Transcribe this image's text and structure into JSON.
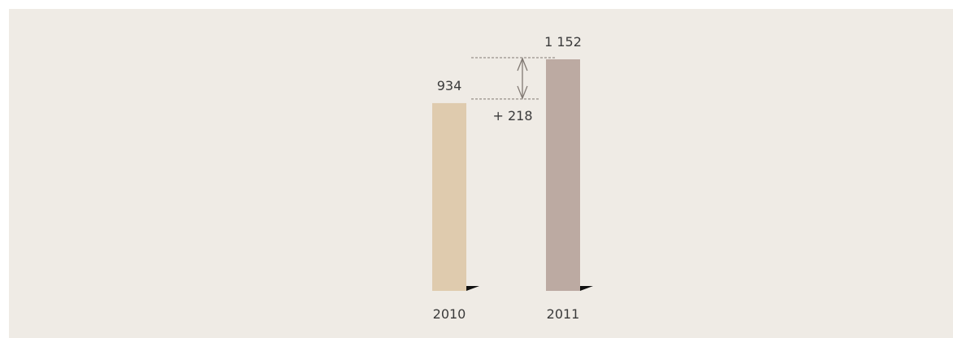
{
  "chart_data": {
    "type": "bar",
    "categories": [
      "2010",
      "2011"
    ],
    "values": [
      934,
      1152
    ],
    "value_labels": [
      "934",
      "1 152"
    ],
    "difference_label": "+ 218",
    "title": "",
    "xlabel": "",
    "ylabel": "",
    "ylim": [
      0,
      1152
    ],
    "grid": false,
    "legend": "none",
    "colors": [
      "#dfcbae",
      "#bcaaa2"
    ],
    "background": "#efebe5",
    "annotation_color": "#807872"
  }
}
